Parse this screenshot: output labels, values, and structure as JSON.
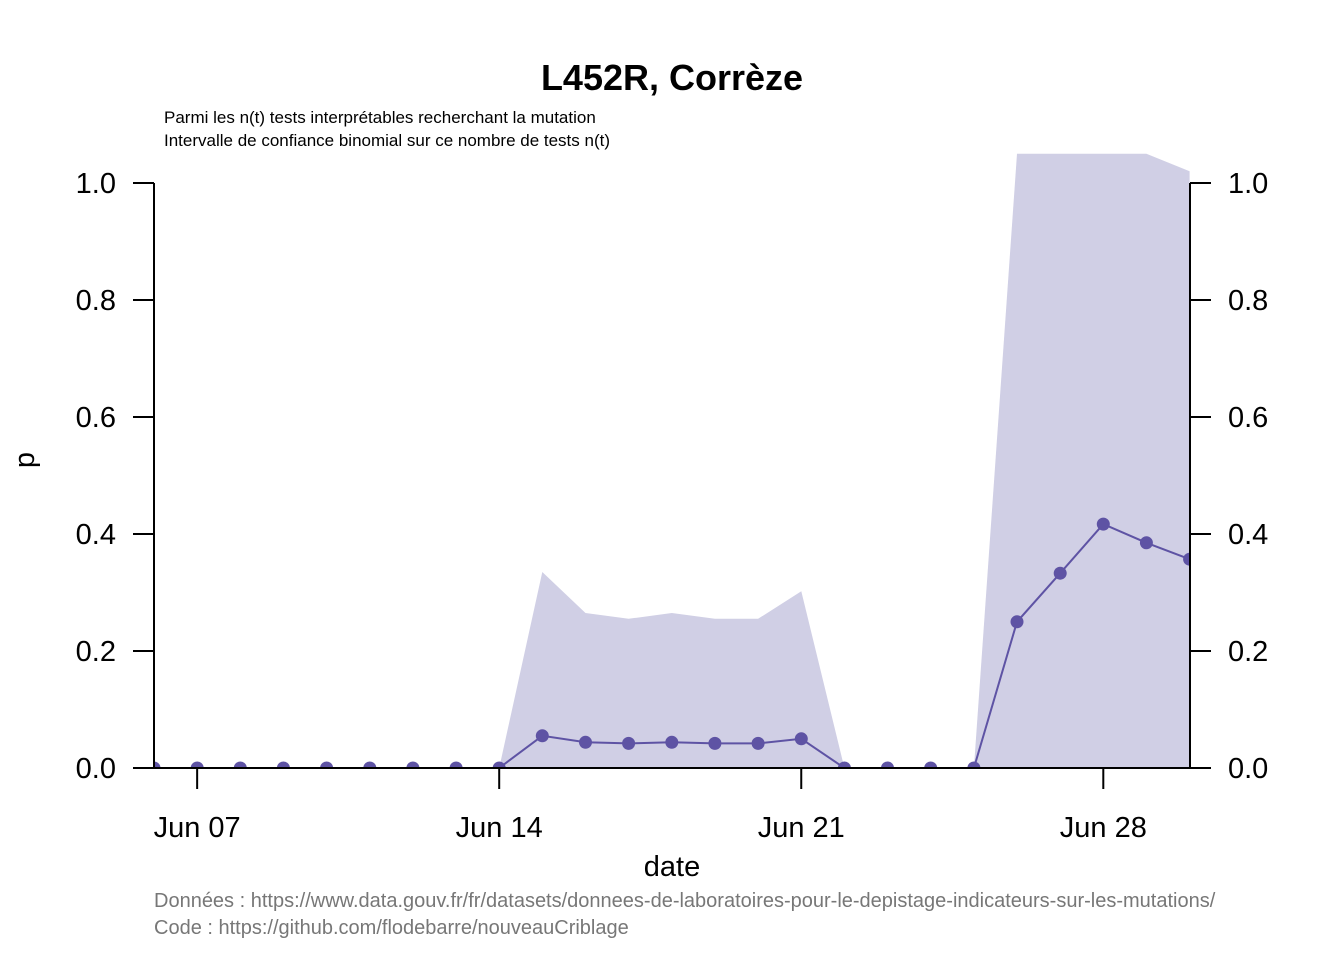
{
  "chart_data": {
    "type": "line",
    "title": "L452R, Corrèze",
    "subtitle_lines": [
      "Parmi les n(t) tests interprétables recherchant la mutation",
      "Intervalle de confiance binomial sur ce nombre de tests n(t)"
    ],
    "xlabel": "date",
    "ylabel": "p",
    "x_ticks": [
      "Jun 07",
      "Jun 14",
      "Jun 21",
      "Jun 28"
    ],
    "x_tick_dates": [
      "2021-06-07",
      "2021-06-14",
      "2021-06-21",
      "2021-06-28"
    ],
    "y_ticks": [
      "0.0",
      "0.2",
      "0.4",
      "0.6",
      "0.8",
      "1.0"
    ],
    "ylim": [
      0,
      1
    ],
    "xlim": [
      "2021-06-06",
      "2021-06-30"
    ],
    "color": "#5E53A4",
    "band_color": "#D0CFE5",
    "series": [
      {
        "x": [
          "2021-06-06",
          "2021-06-07",
          "2021-06-08",
          "2021-06-09",
          "2021-06-10",
          "2021-06-11",
          "2021-06-12",
          "2021-06-13",
          "2021-06-14",
          "2021-06-15",
          "2021-06-16",
          "2021-06-17",
          "2021-06-18",
          "2021-06-19",
          "2021-06-20",
          "2021-06-21",
          "2021-06-22",
          "2021-06-23",
          "2021-06-24",
          "2021-06-25",
          "2021-06-26",
          "2021-06-27",
          "2021-06-28",
          "2021-06-29",
          "2021-06-30"
        ],
        "y": [
          0,
          0,
          0,
          0,
          0,
          0,
          0,
          0,
          0,
          0.055,
          0.044,
          0.042,
          0.044,
          0.042,
          0.042,
          0.05,
          0,
          0,
          0,
          0,
          0.25,
          0.333,
          0.417,
          0.385,
          0.357
        ]
      }
    ],
    "confidence_band": {
      "x": [
        "2021-06-14",
        "2021-06-15",
        "2021-06-16",
        "2021-06-17",
        "2021-06-18",
        "2021-06-19",
        "2021-06-20",
        "2021-06-21",
        "2021-06-22",
        "2021-06-25",
        "2021-06-26",
        "2021-06-27",
        "2021-06-28",
        "2021-06-29",
        "2021-06-30"
      ],
      "lower": [
        0,
        0,
        0,
        0,
        0,
        0,
        0,
        0,
        0,
        0,
        0,
        0,
        0,
        0,
        0
      ],
      "upper": [
        0,
        0.335,
        0.265,
        0.255,
        0.265,
        0.255,
        0.255,
        0.302,
        0,
        0,
        1.05,
        1.05,
        1.05,
        1.05,
        1.02
      ]
    },
    "caption_lines": [
      "Données : https://www.data.gouv.fr/fr/datasets/donnees-de-laboratoires-pour-le-depistage-indicateurs-sur-les-mutations/",
      "Code : https://github.com/flodebarre/nouveauCriblage"
    ]
  }
}
